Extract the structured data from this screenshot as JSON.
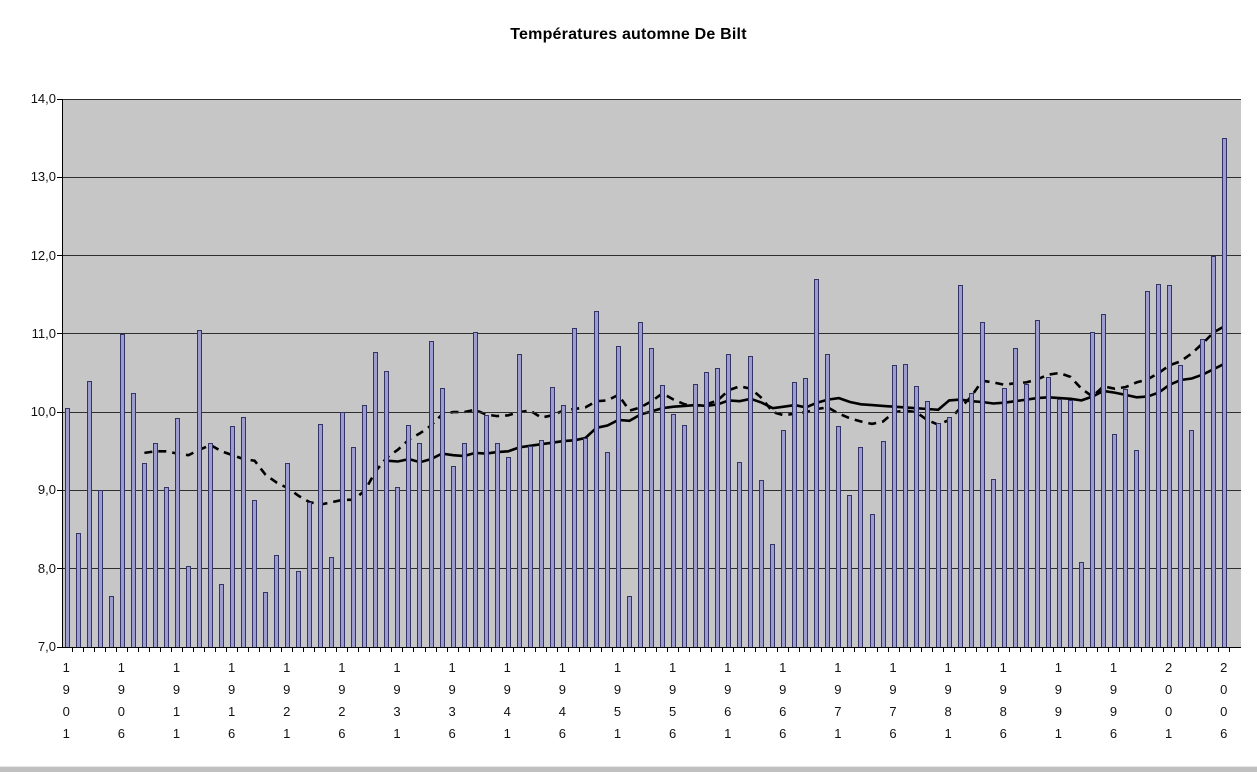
{
  "title": "Températures automne De Bilt",
  "colors": {
    "bar_fill": "#9c9cce",
    "bar_border": "#333366",
    "plot_background": "#c6c6c6",
    "gridline": "#2e2e2e",
    "line_color": "#000000",
    "page_background": "#ffffff",
    "bottom_strip": "#c0c0c0"
  },
  "chart_data": {
    "type": "bar",
    "title": "Températures automne De Bilt",
    "xlabel": "",
    "ylabel": "",
    "ylim": [
      7.0,
      14.0
    ],
    "y_tick_step": 1.0,
    "y_tick_labels": [
      "14,0",
      "13,0",
      "12,0",
      "11,0",
      "10,0",
      "9,0",
      "8,0",
      "7,0"
    ],
    "x_tick_labels": [
      "1901",
      "1906",
      "1911",
      "1916",
      "1921",
      "1926",
      "1931",
      "1936",
      "1941",
      "1946",
      "1951",
      "1956",
      "1961",
      "1966",
      "1971",
      "1976",
      "1981",
      "1986",
      "1991",
      "1996",
      "2001",
      "2006"
    ],
    "year_start": 1901,
    "year_end": 2006,
    "grid": "horizontal",
    "legend": "none",
    "series": [
      {
        "name": "annual-autumn-temperature",
        "type": "bar",
        "values": [
          10.05,
          8.45,
          10.4,
          9.0,
          7.65,
          11.0,
          10.25,
          9.35,
          9.6,
          9.05,
          9.93,
          8.03,
          11.05,
          9.6,
          7.8,
          9.82,
          9.94,
          8.88,
          7.7,
          8.18,
          9.35,
          7.97,
          8.85,
          9.85,
          8.15,
          10.0,
          9.55,
          10.09,
          10.77,
          10.52,
          9.05,
          9.83,
          9.6,
          10.91,
          10.31,
          9.31,
          9.6,
          11.02,
          9.96,
          9.6,
          9.43,
          10.74,
          9.57,
          9.65,
          10.32,
          10.09,
          11.07,
          9.67,
          11.29,
          9.49,
          10.84,
          7.65,
          11.15,
          10.82,
          10.35,
          9.98,
          9.84,
          10.36,
          10.51,
          10.57,
          10.74,
          9.36,
          10.72,
          9.13,
          8.31,
          9.77,
          10.39,
          10.43,
          11.7,
          10.74,
          9.82,
          8.94,
          9.56,
          8.7,
          9.63,
          10.6,
          10.61,
          10.33,
          10.14,
          9.86,
          9.94,
          11.62,
          10.24,
          11.15,
          9.14,
          10.31,
          10.82,
          10.36,
          11.18,
          10.45,
          10.17,
          10.15,
          8.09,
          11.03,
          11.26,
          9.72,
          10.3,
          9.52,
          11.55,
          11.64,
          11.63,
          10.6,
          9.77,
          10.93,
          12.0,
          13.5
        ]
      },
      {
        "name": "smoothed-trend-solid",
        "type": "line",
        "style": "solid",
        "values": [
          null,
          null,
          null,
          null,
          null,
          null,
          null,
          null,
          null,
          null,
          null,
          null,
          null,
          null,
          null,
          null,
          null,
          null,
          null,
          null,
          null,
          null,
          null,
          null,
          null,
          null,
          null,
          null,
          null,
          9.38,
          9.37,
          9.4,
          9.36,
          9.4,
          9.47,
          9.45,
          9.44,
          9.48,
          9.47,
          9.49,
          9.5,
          9.55,
          9.57,
          9.59,
          9.61,
          9.63,
          9.64,
          9.67,
          9.8,
          9.83,
          9.9,
          9.89,
          9.97,
          10.01,
          10.05,
          10.07,
          10.08,
          10.09,
          10.08,
          10.1,
          10.15,
          10.14,
          10.17,
          10.12,
          10.05,
          10.07,
          10.09,
          10.06,
          10.12,
          10.16,
          10.18,
          10.13,
          10.1,
          10.09,
          10.08,
          10.07,
          10.06,
          10.05,
          10.04,
          10.03,
          10.15,
          10.16,
          10.14,
          10.13,
          10.11,
          10.12,
          10.14,
          10.16,
          10.18,
          10.19,
          10.18,
          10.17,
          10.15,
          10.2,
          10.27,
          10.25,
          10.22,
          10.19,
          10.2,
          10.25,
          10.35,
          10.41,
          10.43,
          10.48,
          10.55,
          10.62
        ]
      },
      {
        "name": "smoothed-trend-dashed",
        "type": "line",
        "style": "dashed",
        "values": [
          null,
          null,
          null,
          null,
          null,
          null,
          null,
          9.48,
          9.5,
          9.5,
          9.47,
          9.45,
          9.52,
          9.58,
          9.5,
          9.45,
          9.4,
          9.38,
          9.2,
          9.1,
          9.03,
          8.93,
          8.85,
          8.82,
          8.85,
          8.88,
          8.88,
          9.0,
          9.25,
          9.42,
          9.52,
          9.65,
          9.73,
          9.83,
          9.97,
          10.0,
          10.0,
          10.03,
          9.97,
          9.95,
          9.96,
          10.0,
          10.02,
          9.93,
          9.96,
          10.02,
          10.04,
          10.06,
          10.14,
          10.15,
          10.22,
          10.02,
          10.06,
          10.14,
          10.24,
          10.16,
          10.1,
          10.08,
          10.1,
          10.15,
          10.28,
          10.33,
          10.3,
          10.18,
          10.0,
          9.96,
          9.98,
          10.0,
          10.04,
          10.06,
          9.98,
          9.92,
          9.88,
          9.85,
          9.88,
          10.0,
          10.02,
          10.0,
          9.9,
          9.84,
          9.9,
          10.05,
          10.2,
          10.4,
          10.38,
          10.35,
          10.37,
          10.38,
          10.42,
          10.48,
          10.5,
          10.45,
          10.3,
          10.2,
          10.33,
          10.3,
          10.32,
          10.38,
          10.42,
          10.5,
          10.6,
          10.65,
          10.75,
          10.88,
          11.02,
          11.1
        ]
      }
    ]
  }
}
